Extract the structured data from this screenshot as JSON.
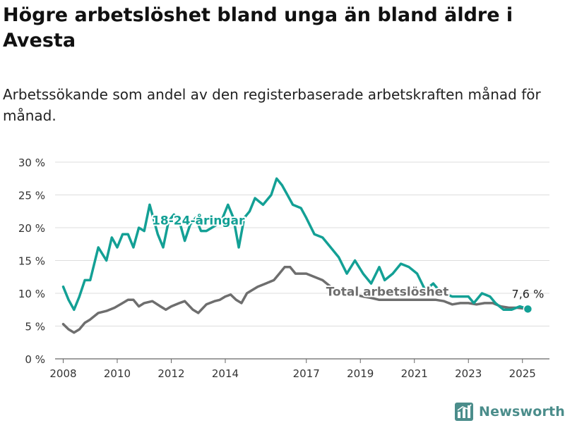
{
  "title": "Högre arbetslöshet bland unga än bland äldre i Avesta",
  "subtitle": "Arbetssökande som andel av den registerbaserade arbetskraften månad för månad.",
  "brand": {
    "name": "Newsworthy",
    "icon": "newsworthy-logo-icon",
    "color": "#4b8d8b"
  },
  "chart_data": {
    "type": "line",
    "yunit": " %",
    "ylim": [
      0,
      30
    ],
    "yticks": [
      0,
      5,
      10,
      15,
      20,
      25,
      30
    ],
    "xlim": [
      2007.7,
      2026.0
    ],
    "xticks": [
      2008,
      2010,
      2012,
      2014,
      2017,
      2019,
      2021,
      2023,
      2025
    ],
    "grid": true,
    "final_label": "7,6 %",
    "series": [
      {
        "name": "18-24-åringar",
        "color": "#13a095",
        "points": [
          [
            2008.0,
            11.0
          ],
          [
            2008.2,
            9.0
          ],
          [
            2008.4,
            7.5
          ],
          [
            2008.6,
            9.5
          ],
          [
            2008.8,
            12.0
          ],
          [
            2009.0,
            12.0
          ],
          [
            2009.3,
            17.0
          ],
          [
            2009.6,
            15.0
          ],
          [
            2009.8,
            18.5
          ],
          [
            2010.0,
            17.0
          ],
          [
            2010.2,
            19.0
          ],
          [
            2010.4,
            19.0
          ],
          [
            2010.6,
            17.0
          ],
          [
            2010.8,
            20.0
          ],
          [
            2011.0,
            19.5
          ],
          [
            2011.2,
            23.5
          ],
          [
            2011.5,
            19.0
          ],
          [
            2011.7,
            17.0
          ],
          [
            2011.9,
            21.0
          ],
          [
            2012.1,
            22.0
          ],
          [
            2012.3,
            21.0
          ],
          [
            2012.5,
            18.0
          ],
          [
            2012.7,
            20.5
          ],
          [
            2012.9,
            21.5
          ],
          [
            2013.1,
            19.5
          ],
          [
            2013.3,
            19.5
          ],
          [
            2013.5,
            20.0
          ],
          [
            2013.7,
            20.5
          ],
          [
            2013.9,
            21.5
          ],
          [
            2014.1,
            23.5
          ],
          [
            2014.3,
            21.5
          ],
          [
            2014.5,
            17.0
          ],
          [
            2014.7,
            21.5
          ],
          [
            2014.9,
            22.5
          ],
          [
            2015.1,
            24.5
          ],
          [
            2015.4,
            23.5
          ],
          [
            2015.7,
            25.0
          ],
          [
            2015.9,
            27.5
          ],
          [
            2016.1,
            26.5
          ],
          [
            2016.3,
            25.0
          ],
          [
            2016.5,
            23.5
          ],
          [
            2016.8,
            23.0
          ],
          [
            2017.0,
            21.5
          ],
          [
            2017.3,
            19.0
          ],
          [
            2017.6,
            18.5
          ],
          [
            2017.9,
            17.0
          ],
          [
            2018.2,
            15.5
          ],
          [
            2018.5,
            13.0
          ],
          [
            2018.8,
            15.0
          ],
          [
            2019.1,
            13.0
          ],
          [
            2019.4,
            11.5
          ],
          [
            2019.7,
            14.0
          ],
          [
            2019.9,
            12.0
          ],
          [
            2020.2,
            13.0
          ],
          [
            2020.5,
            14.5
          ],
          [
            2020.8,
            14.0
          ],
          [
            2021.1,
            13.0
          ],
          [
            2021.4,
            10.5
          ],
          [
            2021.7,
            11.5
          ],
          [
            2021.9,
            10.5
          ],
          [
            2022.1,
            10.0
          ],
          [
            2022.4,
            9.5
          ],
          [
            2022.7,
            9.5
          ],
          [
            2023.0,
            9.5
          ],
          [
            2023.2,
            8.5
          ],
          [
            2023.5,
            10.0
          ],
          [
            2023.8,
            9.5
          ],
          [
            2024.0,
            8.5
          ],
          [
            2024.3,
            7.5
          ],
          [
            2024.6,
            7.5
          ],
          [
            2024.9,
            8.0
          ],
          [
            2025.2,
            7.6
          ]
        ]
      },
      {
        "name": "Total arbetslöshet",
        "color": "#6e6e6e",
        "points": [
          [
            2008.0,
            5.3
          ],
          [
            2008.2,
            4.5
          ],
          [
            2008.4,
            4.0
          ],
          [
            2008.6,
            4.5
          ],
          [
            2008.8,
            5.5
          ],
          [
            2009.0,
            6.0
          ],
          [
            2009.3,
            7.0
          ],
          [
            2009.6,
            7.3
          ],
          [
            2009.9,
            7.8
          ],
          [
            2010.2,
            8.5
          ],
          [
            2010.4,
            9.0
          ],
          [
            2010.6,
            9.0
          ],
          [
            2010.8,
            8.0
          ],
          [
            2011.0,
            8.5
          ],
          [
            2011.3,
            8.8
          ],
          [
            2011.6,
            8.0
          ],
          [
            2011.8,
            7.5
          ],
          [
            2012.0,
            8.0
          ],
          [
            2012.3,
            8.5
          ],
          [
            2012.5,
            8.8
          ],
          [
            2012.8,
            7.5
          ],
          [
            2013.0,
            7.0
          ],
          [
            2013.3,
            8.3
          ],
          [
            2013.6,
            8.8
          ],
          [
            2013.8,
            9.0
          ],
          [
            2014.0,
            9.5
          ],
          [
            2014.2,
            9.8
          ],
          [
            2014.4,
            9.0
          ],
          [
            2014.6,
            8.5
          ],
          [
            2014.8,
            10.0
          ],
          [
            2015.0,
            10.5
          ],
          [
            2015.2,
            11.0
          ],
          [
            2015.5,
            11.5
          ],
          [
            2015.8,
            12.0
          ],
          [
            2016.0,
            13.0
          ],
          [
            2016.2,
            14.0
          ],
          [
            2016.4,
            14.0
          ],
          [
            2016.6,
            13.0
          ],
          [
            2016.8,
            13.0
          ],
          [
            2017.0,
            13.0
          ],
          [
            2017.3,
            12.5
          ],
          [
            2017.6,
            12.0
          ],
          [
            2017.9,
            11.0
          ],
          [
            2018.2,
            10.5
          ],
          [
            2018.5,
            9.8
          ],
          [
            2018.8,
            9.8
          ],
          [
            2019.1,
            9.5
          ],
          [
            2019.4,
            9.3
          ],
          [
            2019.7,
            9.0
          ],
          [
            2020.0,
            9.0
          ],
          [
            2020.3,
            9.0
          ],
          [
            2020.6,
            9.0
          ],
          [
            2020.9,
            9.0
          ],
          [
            2021.2,
            9.0
          ],
          [
            2021.5,
            9.0
          ],
          [
            2021.8,
            9.0
          ],
          [
            2022.1,
            8.8
          ],
          [
            2022.4,
            8.3
          ],
          [
            2022.7,
            8.5
          ],
          [
            2023.0,
            8.5
          ],
          [
            2023.3,
            8.3
          ],
          [
            2023.6,
            8.5
          ],
          [
            2023.9,
            8.5
          ],
          [
            2024.2,
            8.0
          ],
          [
            2024.5,
            7.8
          ],
          [
            2024.8,
            7.8
          ],
          [
            2025.2,
            7.6
          ]
        ]
      }
    ],
    "annotations": [
      {
        "text": "18-24-åringar",
        "series": 0,
        "x": 2013.0,
        "y": 20.5
      },
      {
        "text": "Total arbetslöshet",
        "series": 1,
        "x": 2020.0,
        "y": 9.6
      }
    ]
  }
}
